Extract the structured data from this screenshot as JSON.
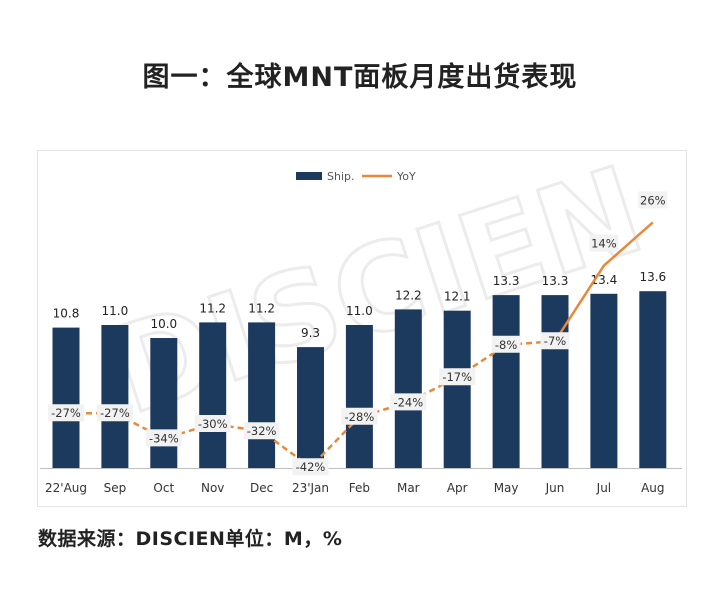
{
  "title": "图一：全球MNT面板月度出货表现",
  "source": "数据来源：DISCIEN单位：M，%",
  "watermark": "DISCIEN",
  "colors": {
    "bar": "#1c3a5e",
    "line": "#e8883a",
    "label_bg": "#f2f2f2"
  },
  "chart_data": {
    "type": "bar",
    "title": "图一：全球MNT面板月度出货表现",
    "categories": [
      "22'Aug",
      "Sep",
      "Oct",
      "Nov",
      "Dec",
      "23'Jan",
      "Feb",
      "Mar",
      "Apr",
      "May",
      "Jun",
      "Jul",
      "Aug"
    ],
    "series": [
      {
        "name": "Ship.",
        "type": "bar",
        "values": [
          10.8,
          11.0,
          10.0,
          11.2,
          11.2,
          9.3,
          11.0,
          12.2,
          12.1,
          13.3,
          13.3,
          13.4,
          13.6
        ],
        "labels": [
          "10.8",
          "11.0",
          "10.0",
          "11.2",
          "11.2",
          "9.3",
          "11.0",
          "12.2",
          "12.1",
          "13.3",
          "13.3",
          "13.4",
          "13.6"
        ]
      },
      {
        "name": "YoY",
        "type": "line",
        "values": [
          -27,
          -27,
          -34,
          -30,
          -32,
          -42,
          -28,
          -24,
          -17,
          -8,
          -7,
          14,
          26
        ],
        "labels": [
          "-27%",
          "-27%",
          "-34%",
          "-30%",
          "-32%",
          "-42%",
          "-28%",
          "-24%",
          "-17%",
          "-8%",
          "-7%",
          "14%",
          "26%"
        ]
      }
    ],
    "legend": [
      "Ship.",
      "YoY"
    ],
    "legend_position": "top-center",
    "grid": false
  }
}
